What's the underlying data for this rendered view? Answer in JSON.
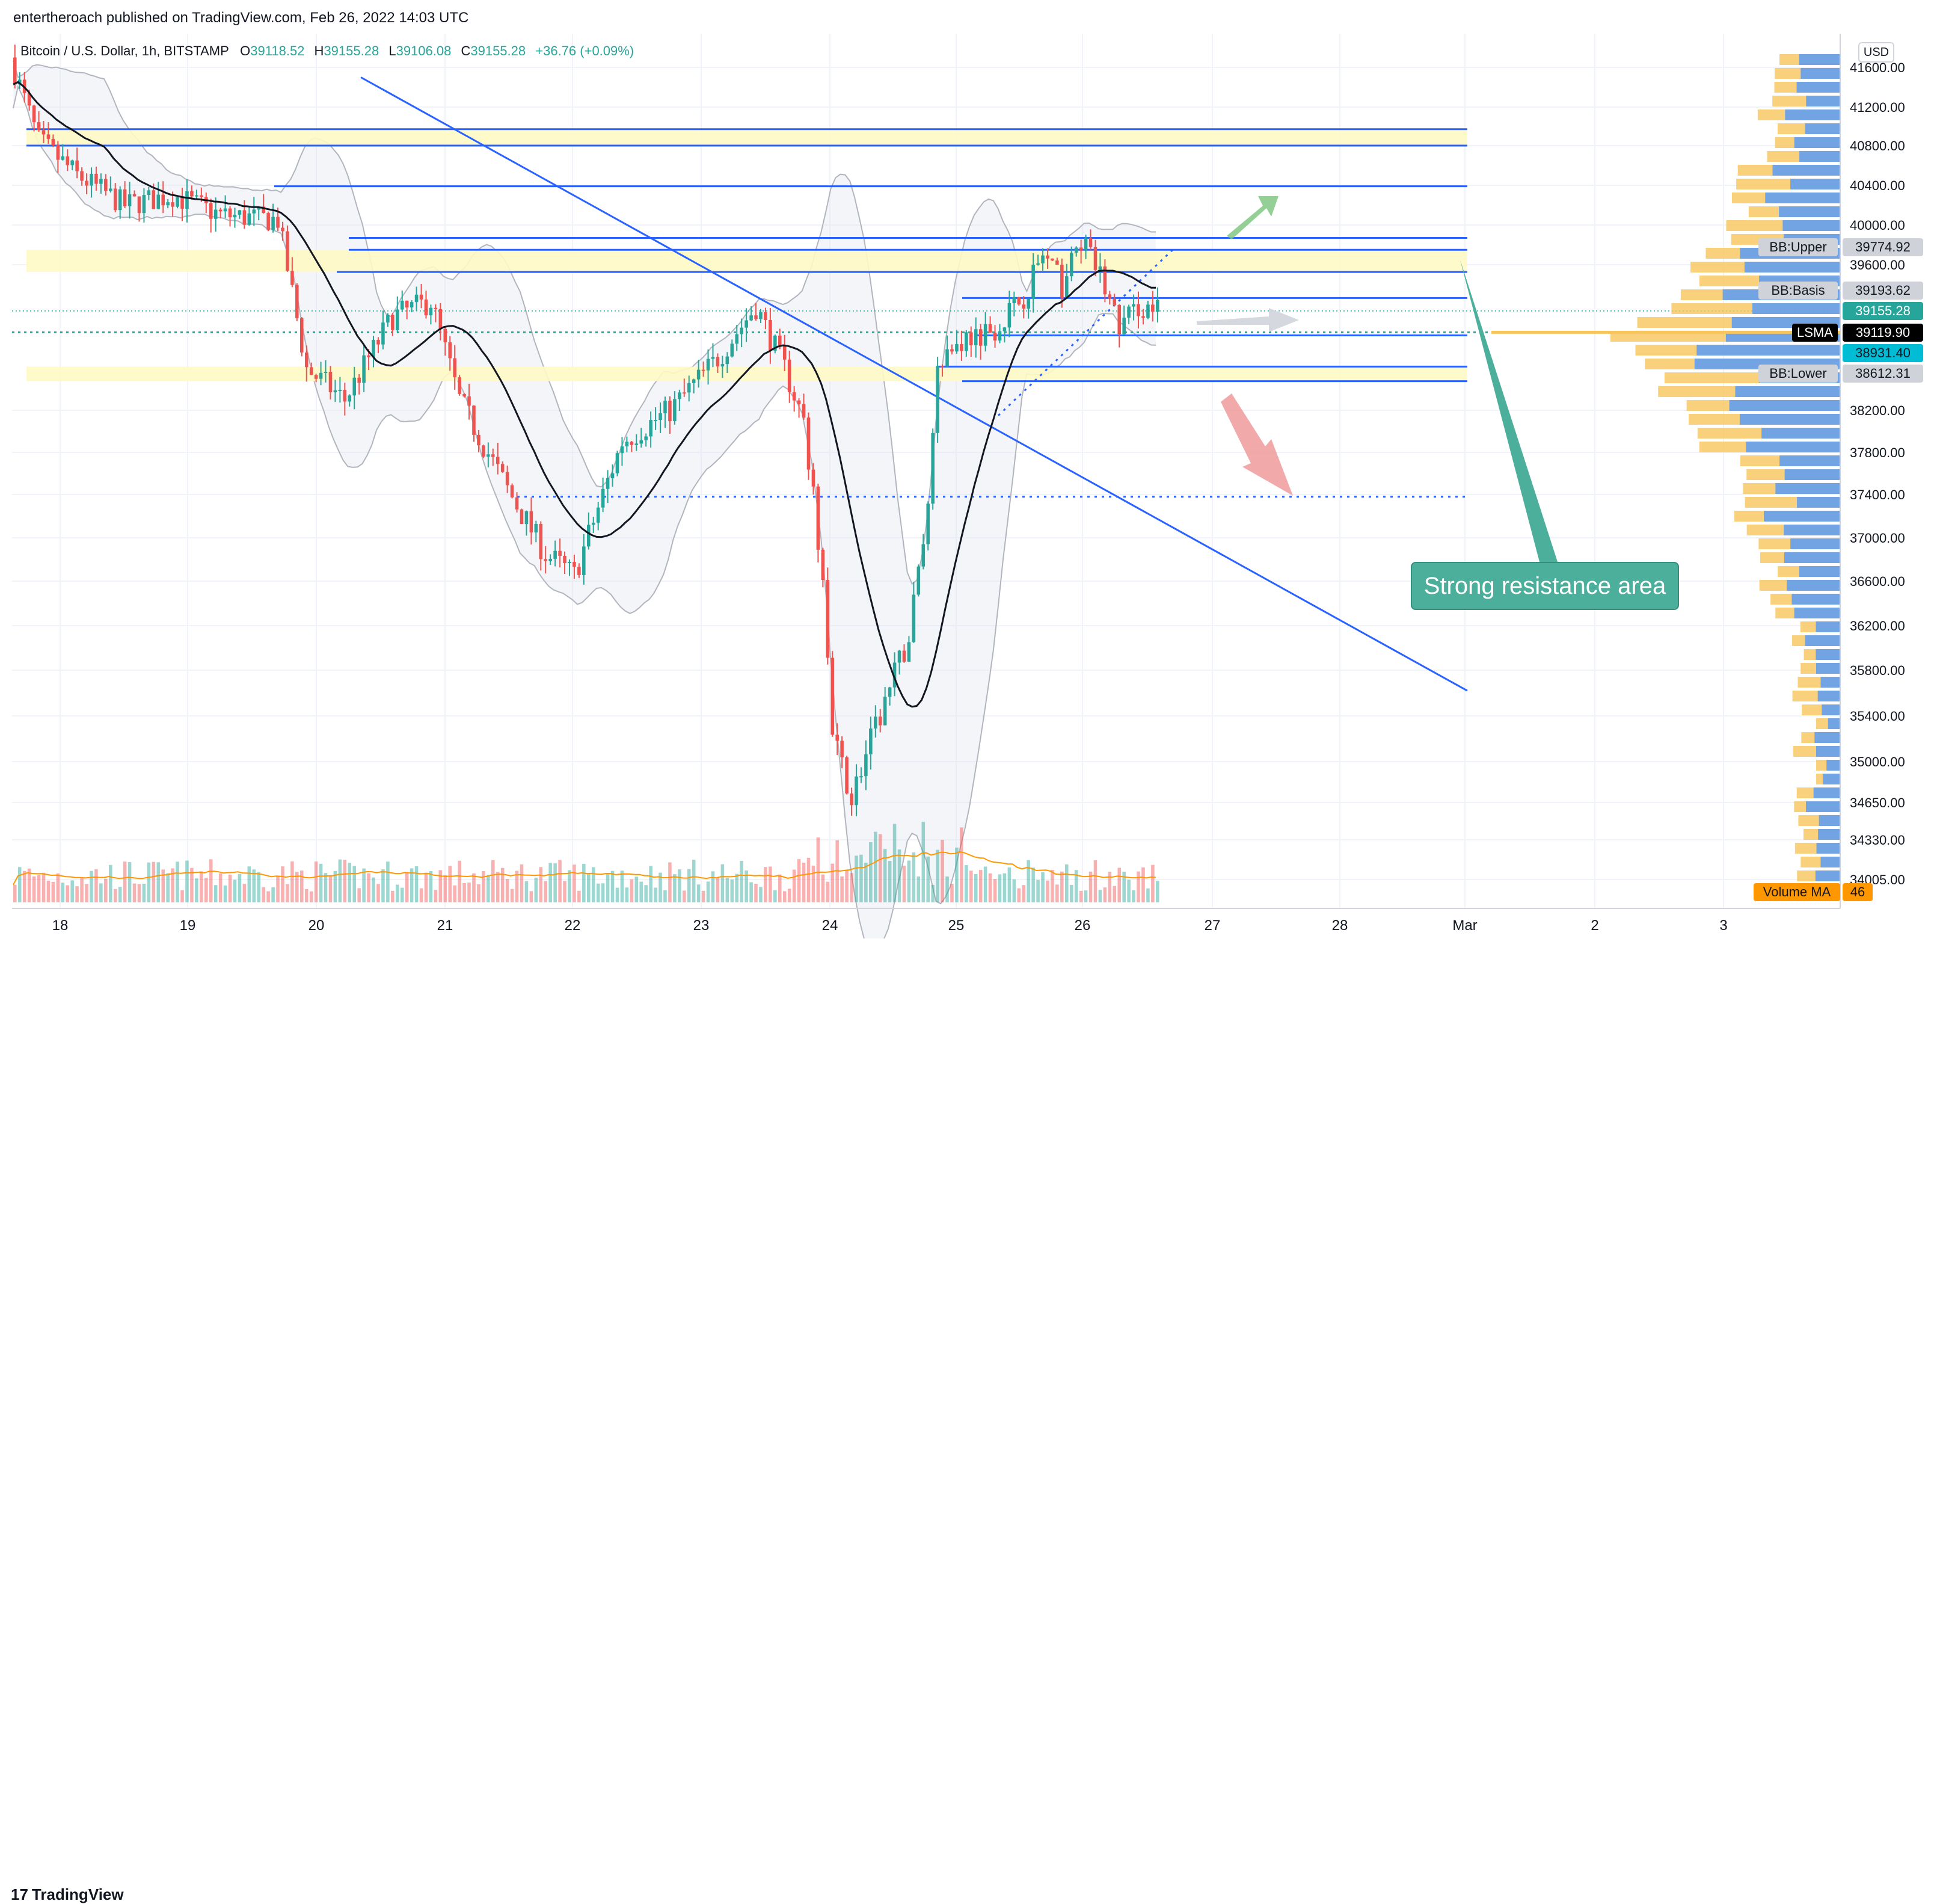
{
  "publisher": "entertheroach published on TradingView.com, Feb 26, 2022 14:03 UTC",
  "footer": {
    "logo_text": "TradingView",
    "logo_mark": "17"
  },
  "legend": {
    "symbol": "Bitcoin / U.S. Dollar, 1h, BITSTAMP",
    "o_label": "O",
    "o": "39118.52",
    "h_label": "H",
    "h": "39155.28",
    "l_label": "L",
    "l": "39106.08",
    "c_label": "C",
    "c": "39155.28",
    "change": "+36.76 (+0.09%)"
  },
  "currency": "USD",
  "callout": "Strong resistance area",
  "colors": {
    "up": "#26a69a",
    "down": "#ef5350",
    "trend": "#2962ff",
    "zone": "#fff9c4",
    "bb_label": "#cfd2d8",
    "price_tag": "#26a69a",
    "lsma_tag": "#000000",
    "cyan_tag": "#00bcd4",
    "vol_ma": "#ff9800",
    "profile_up": "#5b9cf6",
    "profile_down": "#f7c55c"
  },
  "chart_data": {
    "type": "candlestick",
    "symbol": "Bitcoin / U.S. Dollar",
    "interval": "1h",
    "ylim": [
      33900,
      41900
    ],
    "y_ticks": [
      "41600.00",
      "41200.00",
      "40800.00",
      "40400.00",
      "40000.00",
      "39600.00",
      "38200.00",
      "37800.00",
      "37400.00",
      "37000.00",
      "36600.00",
      "36200.00",
      "35800.00",
      "35400.00",
      "35000.00",
      "34650.00",
      "34330.00",
      "34005.00"
    ],
    "x_ticks": [
      "18",
      "19",
      "20",
      "21",
      "22",
      "23",
      "24",
      "25",
      "26",
      "27",
      "28",
      "Mar",
      "2",
      "3"
    ],
    "price_tags": [
      {
        "label": "BB:Upper",
        "value": "39774.92",
        "kind": "bb"
      },
      {
        "label": "BB:Basis",
        "value": "39193.62",
        "kind": "bb"
      },
      {
        "label": "",
        "value": "39155.28",
        "kind": "price"
      },
      {
        "label": "LSMA",
        "value": "39119.90",
        "kind": "lsma"
      },
      {
        "label": "",
        "value": "38931.40",
        "kind": "cyan"
      },
      {
        "label": "BB:Lower",
        "value": "38612.31",
        "kind": "bb"
      }
    ],
    "volume_tag": {
      "label": "Volume MA",
      "value": "46"
    },
    "resistance_lines": [
      40970,
      40800,
      40390,
      39870,
      39750,
      39530,
      39280,
      38920,
      38620,
      38480
    ],
    "current_price": 39155.28,
    "lsma_level": 38950
  }
}
